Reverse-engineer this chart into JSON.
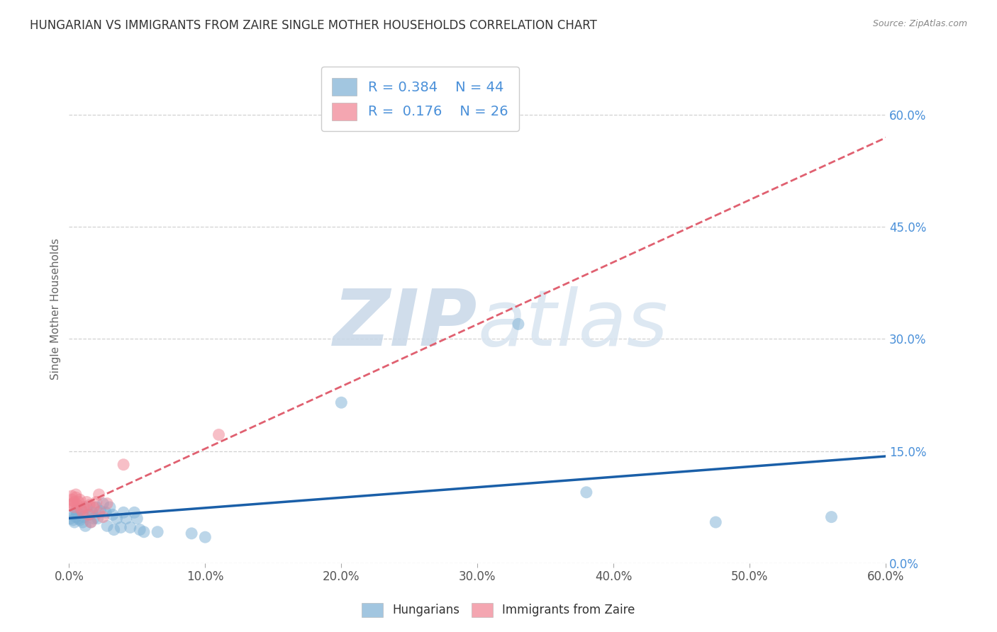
{
  "title": "HUNGARIAN VS IMMIGRANTS FROM ZAIRE SINGLE MOTHER HOUSEHOLDS CORRELATION CHART",
  "source": "Source: ZipAtlas.com",
  "xlabel_ticks": [
    "0.0%",
    "10.0%",
    "20.0%",
    "30.0%",
    "40.0%",
    "50.0%",
    "60.0%"
  ],
  "ylabel_ticks": [
    "0.0%",
    "15.0%",
    "30.0%",
    "45.0%",
    "60.0%"
  ],
  "ylabel_label": "Single Mother Households",
  "xlim": [
    0.0,
    0.6
  ],
  "ylim": [
    0.0,
    0.68
  ],
  "legend_R_N_blue": {
    "R": "0.384",
    "N": "44"
  },
  "legend_R_N_pink": {
    "R": "0.176",
    "N": "26"
  },
  "legend_labels": [
    "Hungarians",
    "Immigrants from Zaire"
  ],
  "blue_color": "#7bafd4",
  "pink_color": "#f08090",
  "blue_line_color": "#1a5fa8",
  "pink_line_color": "#e06070",
  "watermark_color": "#d0dce8",
  "background_color": "#ffffff",
  "grid_color": "#cccccc",
  "title_color": "#333333",
  "axis_tick_color_x": "#555555",
  "axis_tick_color_y": "#4a90d9",
  "blue_scatter": [
    [
      0.001,
      0.06
    ],
    [
      0.002,
      0.065
    ],
    [
      0.003,
      0.058
    ],
    [
      0.004,
      0.055
    ],
    [
      0.005,
      0.07
    ],
    [
      0.005,
      0.062
    ],
    [
      0.006,
      0.068
    ],
    [
      0.007,
      0.06
    ],
    [
      0.008,
      0.058
    ],
    [
      0.009,
      0.072
    ],
    [
      0.01,
      0.055
    ],
    [
      0.011,
      0.062
    ],
    [
      0.012,
      0.05
    ],
    [
      0.013,
      0.075
    ],
    [
      0.015,
      0.065
    ],
    [
      0.016,
      0.055
    ],
    [
      0.017,
      0.068
    ],
    [
      0.018,
      0.06
    ],
    [
      0.02,
      0.075
    ],
    [
      0.021,
      0.06
    ],
    [
      0.023,
      0.07
    ],
    [
      0.025,
      0.08
    ],
    [
      0.027,
      0.068
    ],
    [
      0.028,
      0.05
    ],
    [
      0.03,
      0.075
    ],
    [
      0.032,
      0.065
    ],
    [
      0.033,
      0.045
    ],
    [
      0.035,
      0.06
    ],
    [
      0.038,
      0.048
    ],
    [
      0.04,
      0.068
    ],
    [
      0.042,
      0.06
    ],
    [
      0.045,
      0.048
    ],
    [
      0.048,
      0.068
    ],
    [
      0.05,
      0.06
    ],
    [
      0.052,
      0.045
    ],
    [
      0.055,
      0.042
    ],
    [
      0.065,
      0.042
    ],
    [
      0.09,
      0.04
    ],
    [
      0.1,
      0.035
    ],
    [
      0.2,
      0.215
    ],
    [
      0.33,
      0.32
    ],
    [
      0.38,
      0.095
    ],
    [
      0.475,
      0.055
    ],
    [
      0.56,
      0.062
    ]
  ],
  "pink_scatter": [
    [
      0.001,
      0.078
    ],
    [
      0.002,
      0.085
    ],
    [
      0.002,
      0.09
    ],
    [
      0.003,
      0.08
    ],
    [
      0.004,
      0.075
    ],
    [
      0.004,
      0.082
    ],
    [
      0.005,
      0.092
    ],
    [
      0.005,
      0.088
    ],
    [
      0.006,
      0.078
    ],
    [
      0.007,
      0.082
    ],
    [
      0.008,
      0.085
    ],
    [
      0.009,
      0.072
    ],
    [
      0.01,
      0.068
    ],
    [
      0.011,
      0.075
    ],
    [
      0.013,
      0.082
    ],
    [
      0.014,
      0.065
    ],
    [
      0.015,
      0.078
    ],
    [
      0.016,
      0.055
    ],
    [
      0.018,
      0.075
    ],
    [
      0.02,
      0.082
    ],
    [
      0.022,
      0.092
    ],
    [
      0.022,
      0.068
    ],
    [
      0.025,
      0.062
    ],
    [
      0.028,
      0.08
    ],
    [
      0.04,
      0.132
    ],
    [
      0.11,
      0.172
    ]
  ]
}
